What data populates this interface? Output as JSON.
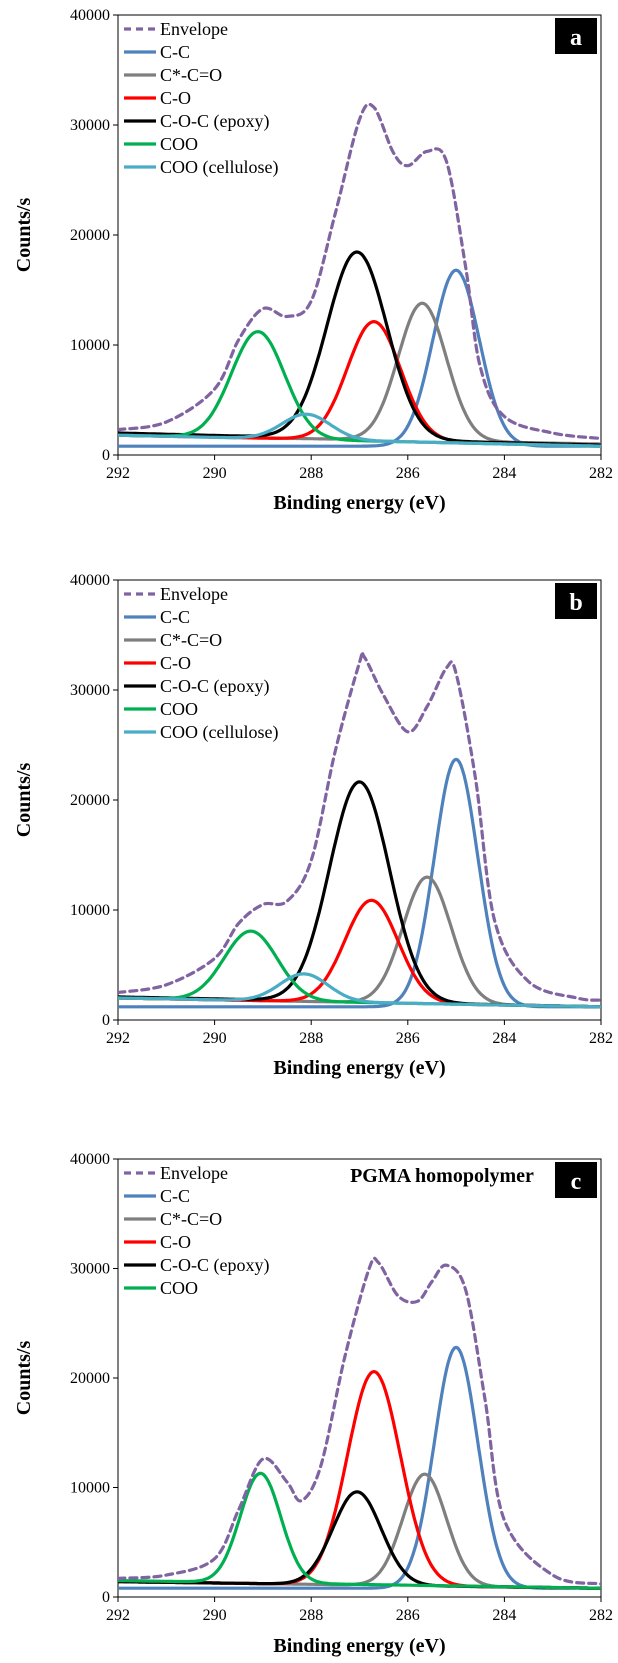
{
  "chart_data": [
    {
      "type": "line",
      "panel_label": "a",
      "annotation": "",
      "xlabel": "Binding energy (eV)",
      "ylabel": "Counts/s",
      "xlim": [
        292,
        282
      ],
      "ylim": [
        0,
        40000
      ],
      "xticks": [
        292,
        290,
        288,
        286,
        284,
        282
      ],
      "yticks": [
        0,
        10000,
        20000,
        30000,
        40000
      ],
      "legend_position": "top-left",
      "series": [
        {
          "name": "Envelope",
          "color": "#8064A2",
          "dashed": true,
          "x": [
            292,
            291,
            290,
            289.5,
            289,
            288.5,
            288,
            287.5,
            287,
            286.7,
            286.3,
            286,
            285.6,
            285.2,
            284.8,
            284.5,
            284,
            283,
            282
          ],
          "y": [
            2300,
            3000,
            6000,
            10500,
            13300,
            12600,
            14000,
            22000,
            30500,
            31600,
            27500,
            26300,
            27600,
            26700,
            17000,
            8000,
            3500,
            2000,
            1500
          ]
        },
        {
          "name": "C-C",
          "color": "#4F81BD",
          "peak": [
            285.0,
            16000,
            0.48
          ],
          "base": [
            800,
            800
          ]
        },
        {
          "name": "C*-C=O",
          "color": "#7F7F7F",
          "peak": [
            285.7,
            12500,
            0.5
          ],
          "base": [
            1800,
            1000
          ]
        },
        {
          "name": "C-O",
          "color": "#FF0000",
          "peak": [
            286.7,
            10800,
            0.55
          ],
          "base": [
            1800,
            900
          ]
        },
        {
          "name": "C-O-C (epoxy)",
          "color": "#000000",
          "peak": [
            287.05,
            17000,
            0.62
          ],
          "base": [
            2000,
            900
          ]
        },
        {
          "name": "COO",
          "color": "#00B050",
          "peak": [
            289.1,
            9700,
            0.55
          ],
          "base": [
            1800,
            800
          ]
        },
        {
          "name": "COO (cellulose)",
          "color": "#4BACC6",
          "peak": [
            288.1,
            2300,
            0.5
          ],
          "base": [
            1800,
            800
          ]
        }
      ]
    },
    {
      "type": "line",
      "panel_label": "b",
      "annotation": "",
      "xlabel": "Binding energy (eV)",
      "ylabel": "Counts/s",
      "xlim": [
        292,
        282
      ],
      "ylim": [
        0,
        40000
      ],
      "xticks": [
        292,
        290,
        288,
        286,
        284,
        282
      ],
      "yticks": [
        0,
        10000,
        20000,
        30000,
        40000
      ],
      "legend_position": "top-left",
      "series": [
        {
          "name": "Envelope",
          "color": "#8064A2",
          "dashed": true,
          "x": [
            292,
            291,
            290,
            289.5,
            289,
            288.5,
            288,
            287.5,
            287,
            286.9,
            286.5,
            286,
            285.6,
            285.2,
            285,
            284.6,
            284.2,
            283.5,
            282.5,
            282
          ],
          "y": [
            2500,
            3200,
            5600,
            8800,
            10500,
            10800,
            14500,
            24500,
            32500,
            33000,
            29500,
            26200,
            28500,
            32000,
            31500,
            22000,
            9000,
            3500,
            2000,
            1800
          ]
        },
        {
          "name": "C-C",
          "color": "#4F81BD",
          "peak": [
            285.0,
            22500,
            0.45
          ],
          "base": [
            1200,
            1200
          ]
        },
        {
          "name": "C*-C=O",
          "color": "#7F7F7F",
          "peak": [
            285.6,
            11500,
            0.5
          ],
          "base": [
            2000,
            1200
          ]
        },
        {
          "name": "C-O",
          "color": "#FF0000",
          "peak": [
            286.75,
            9300,
            0.55
          ],
          "base": [
            2000,
            1200
          ]
        },
        {
          "name": "C-O-C (epoxy)",
          "color": "#000000",
          "peak": [
            287.0,
            20000,
            0.62
          ],
          "base": [
            2100,
            1200
          ]
        },
        {
          "name": "COO",
          "color": "#00B050",
          "peak": [
            289.25,
            6300,
            0.55
          ],
          "base": [
            2000,
            1200
          ]
        },
        {
          "name": "COO (cellulose)",
          "color": "#4BACC6",
          "peak": [
            288.15,
            2500,
            0.5
          ],
          "base": [
            2000,
            1200
          ]
        }
      ]
    },
    {
      "type": "line",
      "panel_label": "c",
      "annotation": "PGMA homopolymer",
      "xlabel": "Binding energy (eV)",
      "ylabel": "Counts/s",
      "xlim": [
        292,
        282
      ],
      "ylim": [
        0,
        40000
      ],
      "xticks": [
        292,
        290,
        288,
        286,
        284,
        282
      ],
      "yticks": [
        0,
        10000,
        20000,
        30000,
        40000
      ],
      "legend_position": "top-left",
      "series": [
        {
          "name": "Envelope",
          "color": "#8064A2",
          "dashed": true,
          "x": [
            292,
            291,
            290,
            289.5,
            289,
            288.5,
            288.2,
            287.8,
            287.3,
            286.8,
            286.6,
            286.2,
            285.8,
            285.5,
            285.2,
            284.8,
            284.4,
            284,
            283,
            282
          ],
          "y": [
            1700,
            2000,
            3500,
            8000,
            12600,
            10500,
            8800,
            12000,
            22000,
            30000,
            30500,
            27500,
            27000,
            28800,
            30300,
            28000,
            18000,
            7000,
            2000,
            1200
          ]
        },
        {
          "name": "C-C",
          "color": "#4F81BD",
          "peak": [
            285.0,
            22000,
            0.45
          ],
          "base": [
            800,
            800
          ]
        },
        {
          "name": "C*-C=O",
          "color": "#7F7F7F",
          "peak": [
            285.65,
            10200,
            0.45
          ],
          "base": [
            1400,
            800
          ]
        },
        {
          "name": "C-O",
          "color": "#FF0000",
          "peak": [
            286.7,
            19500,
            0.55
          ],
          "base": [
            1400,
            800
          ]
        },
        {
          "name": "C-O-C (epoxy)",
          "color": "#000000",
          "peak": [
            287.05,
            8500,
            0.5
          ],
          "base": [
            1400,
            800
          ]
        },
        {
          "name": "COO",
          "color": "#00B050",
          "peak": [
            289.05,
            10000,
            0.42
          ],
          "base": [
            1500,
            800
          ]
        }
      ]
    }
  ]
}
